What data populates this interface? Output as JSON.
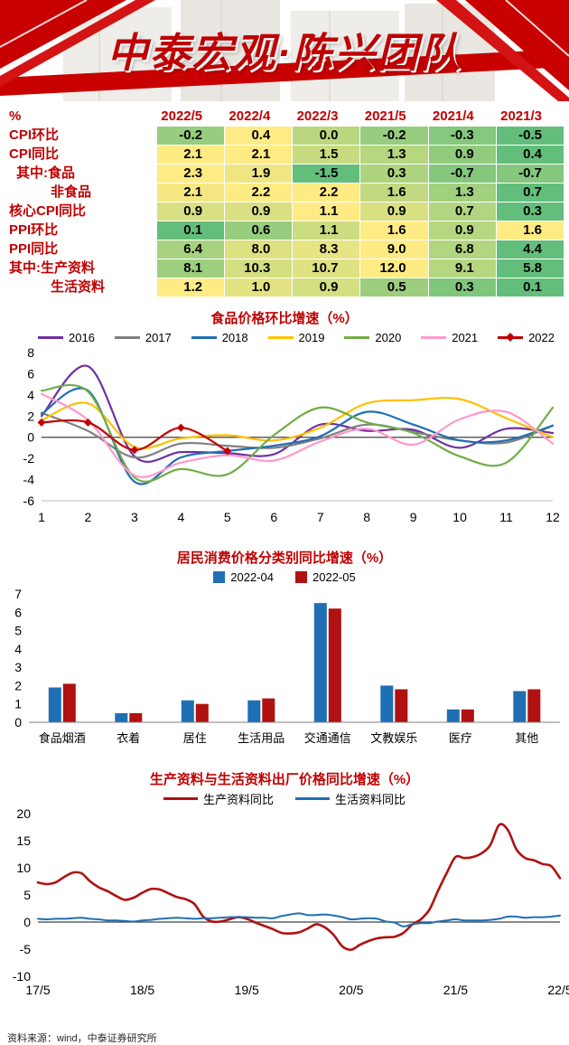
{
  "header": {
    "title": "中泰宏观·陈兴团队",
    "accent_color": "#c00000"
  },
  "table": {
    "unit_label": "%",
    "columns": [
      "2022/5",
      "2022/4",
      "2022/3",
      "2021/5",
      "2021/4",
      "2021/3"
    ],
    "rows": [
      {
        "label": "CPI环比",
        "indent": 0,
        "values": [
          -0.2,
          0.4,
          0.0,
          -0.2,
          -0.3,
          -0.5
        ]
      },
      {
        "label": "CPI同比",
        "indent": 0,
        "values": [
          2.1,
          2.1,
          1.5,
          1.3,
          0.9,
          0.4
        ]
      },
      {
        "label": "其中:食品",
        "indent": 1,
        "values": [
          2.3,
          1.9,
          -1.5,
          0.3,
          -0.7,
          -0.7
        ]
      },
      {
        "label": "非食品",
        "indent": 2,
        "values": [
          2.1,
          2.2,
          2.2,
          1.6,
          1.3,
          0.7
        ]
      },
      {
        "label": "核心CPI同比",
        "indent": 0,
        "values": [
          0.9,
          0.9,
          1.1,
          0.9,
          0.7,
          0.3
        ]
      },
      {
        "label": "PPI环比",
        "indent": 0,
        "values": [
          0.1,
          0.6,
          1.1,
          1.6,
          0.9,
          1.6
        ]
      },
      {
        "label": "PPI同比",
        "indent": 0,
        "values": [
          6.4,
          8.0,
          8.3,
          9.0,
          6.8,
          4.4
        ]
      },
      {
        "label": "其中:生产资料",
        "indent": 0,
        "values": [
          8.1,
          10.3,
          10.7,
          12.0,
          9.1,
          5.8
        ]
      },
      {
        "label": "生活资料",
        "indent": 2,
        "values": [
          1.2,
          1.0,
          0.9,
          0.5,
          0.3,
          0.1
        ]
      }
    ],
    "heatmap": {
      "low_color": "#63be7b",
      "high_color": "#ffeb84"
    }
  },
  "chart_data": [
    {
      "type": "line",
      "title": "食品价格环比增速（%）",
      "x": [
        1,
        2,
        3,
        4,
        5,
        6,
        7,
        8,
        9,
        10,
        11,
        12
      ],
      "ylim": [
        -6,
        8
      ],
      "yticks": [
        8,
        6,
        4,
        2,
        0,
        -2,
        -4,
        -6
      ],
      "legend_position": "top",
      "grid": false,
      "series": [
        {
          "name": "2016",
          "color": "#7030a0",
          "values": [
            2.0,
            6.7,
            -1.8,
            -1.4,
            -1.5,
            -1.6,
            1.2,
            0.6,
            0.7,
            -1.0,
            0.8,
            0.4
          ]
        },
        {
          "name": "2017",
          "color": "#7f7f7f",
          "values": [
            2.3,
            0.6,
            -1.9,
            -0.6,
            -0.8,
            -1.0,
            -0.1,
            1.2,
            0.5,
            -0.3,
            -0.5,
            1.1
          ]
        },
        {
          "name": "2018",
          "color": "#1f6fb4",
          "values": [
            2.2,
            4.4,
            -4.2,
            -1.9,
            -1.3,
            -0.8,
            0.1,
            2.4,
            1.2,
            -0.3,
            -0.3,
            1.1
          ]
        },
        {
          "name": "2019",
          "color": "#ffc000",
          "values": [
            1.6,
            3.2,
            -0.9,
            -0.1,
            0.2,
            -0.3,
            0.9,
            3.2,
            3.5,
            3.6,
            1.8,
            0.0
          ]
        },
        {
          "name": "2020",
          "color": "#70ad47",
          "values": [
            4.4,
            4.3,
            -3.8,
            -3.0,
            -3.5,
            0.2,
            2.8,
            1.4,
            0.4,
            -1.8,
            -2.4,
            2.8
          ]
        },
        {
          "name": "2021",
          "color": "#ff99cc",
          "values": [
            4.1,
            1.6,
            -3.6,
            -2.4,
            -1.7,
            -2.2,
            -0.4,
            0.8,
            -0.7,
            1.7,
            2.4,
            -0.6
          ]
        },
        {
          "name": "2022",
          "color": "#c00000",
          "marker": "diamond",
          "values": [
            1.4,
            1.4,
            -1.2,
            0.9,
            -1.3
          ]
        }
      ]
    },
    {
      "type": "bar",
      "title": "居民消费价格分类别同比增速（%）",
      "categories": [
        "食品烟酒",
        "衣着",
        "居住",
        "生活用品",
        "交通通信",
        "文教娱乐",
        "医疗",
        "其他"
      ],
      "ylim": [
        0,
        7
      ],
      "yticks": [
        0,
        1,
        2,
        3,
        4,
        5,
        6,
        7
      ],
      "legend_position": "top",
      "grid": false,
      "series": [
        {
          "name": "2022-04",
          "color": "#1f6fb4",
          "values": [
            1.9,
            0.5,
            1.2,
            1.2,
            6.5,
            2.0,
            0.7,
            1.7
          ]
        },
        {
          "name": "2022-05",
          "color": "#b01111",
          "values": [
            2.1,
            0.5,
            1.0,
            1.3,
            6.2,
            1.8,
            0.7,
            1.8
          ]
        }
      ]
    },
    {
      "type": "line",
      "title": "生产资料与生活资料出厂价格同比增速（%）",
      "x_labels": [
        "17/5",
        "18/5",
        "19/5",
        "20/5",
        "21/5",
        "22/5"
      ],
      "x_label_positions": [
        0,
        12,
        24,
        36,
        48,
        60
      ],
      "ylim": [
        -10,
        20
      ],
      "yticks": [
        20,
        15,
        10,
        5,
        0,
        -5,
        -10
      ],
      "legend_position": "top",
      "grid": false,
      "series": [
        {
          "name": "生产资料同比",
          "color": "#b01111",
          "width": 2.6,
          "values": [
            7.3,
            7.0,
            7.3,
            8.3,
            9.1,
            9.0,
            7.5,
            6.4,
            5.7,
            4.8,
            4.1,
            4.5,
            5.4,
            6.1,
            6.0,
            5.3,
            4.6,
            4.2,
            3.3,
            1.0,
            0.1,
            0.1,
            0.5,
            0.9,
            0.6,
            -0.1,
            -0.7,
            -1.3,
            -2.0,
            -2.1,
            -1.9,
            -1.2,
            -0.4,
            -1.0,
            -2.4,
            -4.5,
            -5.1,
            -4.2,
            -3.5,
            -3.0,
            -2.8,
            -2.7,
            -2.0,
            -0.5,
            0.5,
            2.3,
            5.8,
            9.1,
            12.0,
            11.8,
            12.0,
            12.7,
            14.2,
            17.9,
            17.0,
            13.4,
            11.8,
            11.4,
            10.7,
            10.3,
            8.1
          ]
        },
        {
          "name": "生活资料同比",
          "color": "#1f6fb4",
          "width": 2,
          "values": [
            0.6,
            0.5,
            0.6,
            0.6,
            0.7,
            0.8,
            0.6,
            0.5,
            0.3,
            0.3,
            0.2,
            0.1,
            0.3,
            0.4,
            0.6,
            0.7,
            0.8,
            0.7,
            0.6,
            0.7,
            0.7,
            0.8,
            0.9,
            0.9,
            0.9,
            0.8,
            0.8,
            0.7,
            1.1,
            1.4,
            1.6,
            1.3,
            1.3,
            1.4,
            1.2,
            0.9,
            0.5,
            0.6,
            0.7,
            0.6,
            0.1,
            -0.1,
            -0.8,
            -0.4,
            -0.2,
            -0.2,
            0.1,
            0.3,
            0.5,
            0.3,
            0.3,
            0.3,
            0.4,
            0.6,
            1.0,
            1.0,
            0.8,
            0.9,
            0.9,
            1.0,
            1.2
          ]
        }
      ]
    }
  ],
  "footer": {
    "source_text": "资料来源：wind，中泰证券研究所"
  }
}
